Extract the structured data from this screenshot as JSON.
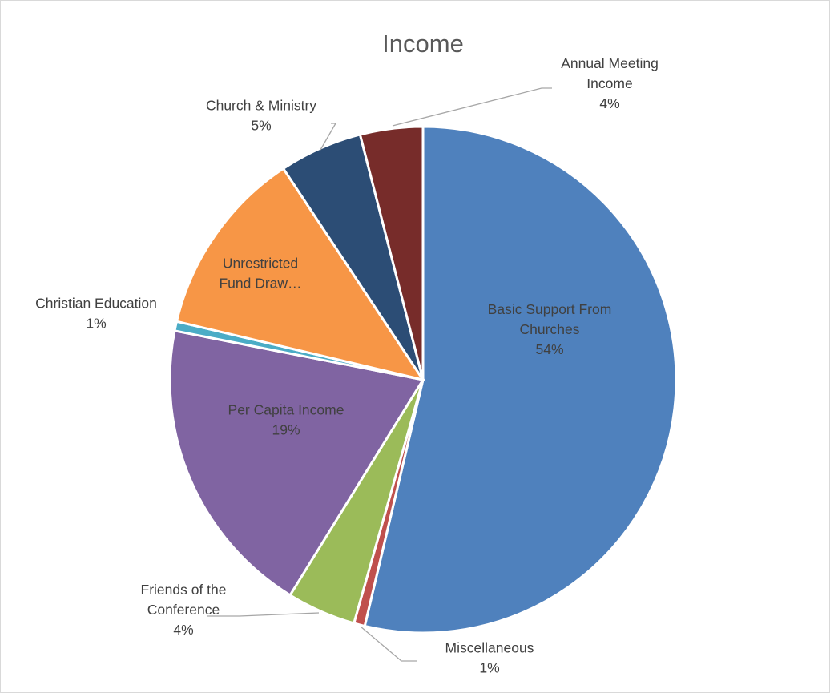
{
  "chart_data": {
    "type": "pie",
    "title": "Income",
    "start_angle_deg": 0,
    "direction": "clockwise",
    "series": [
      {
        "values": [
          {
            "label": "Basic Support From Churches",
            "percent_label": "54%",
            "value": 53.7,
            "color": "#4F81BD"
          },
          {
            "label": "Miscellaneous",
            "percent_label": "1%",
            "value": 0.7,
            "color": "#C0504D"
          },
          {
            "label": "Friends of the Conference",
            "percent_label": "4%",
            "value": 4.4,
            "color": "#9BBB59"
          },
          {
            "label": "Per Capita Income",
            "percent_label": "19%",
            "value": 19.3,
            "color": "#8064A2"
          },
          {
            "label": "Christian Education",
            "percent_label": "1%",
            "value": 0.6,
            "color": "#4BACC6"
          },
          {
            "label": "Unrestricted Fund Draw…",
            "percent_label": "",
            "value": 12.0,
            "color": "#F79646"
          },
          {
            "label": "Church & Ministry",
            "percent_label": "5%",
            "value": 5.3,
            "color": "#2C4D75"
          },
          {
            "label": "Annual Meeting Income",
            "percent_label": "4%",
            "value": 4.0,
            "color": "#772C2A"
          }
        ]
      }
    ],
    "legend": "none",
    "data_labels": "category name and percentage"
  }
}
